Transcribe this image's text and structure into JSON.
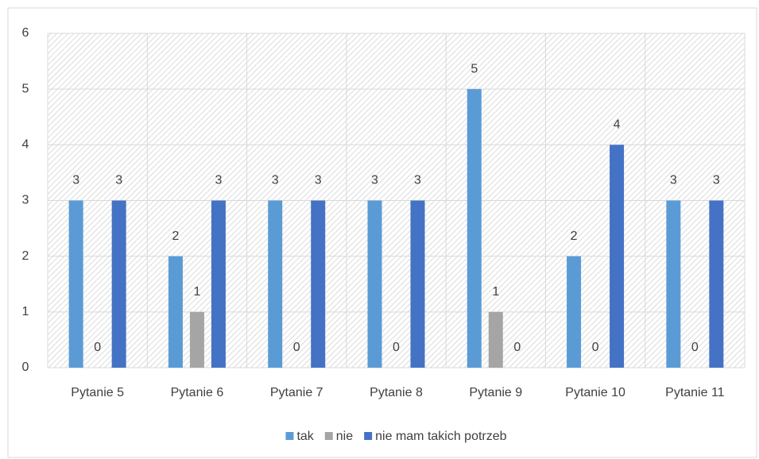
{
  "chart_data": {
    "type": "bar",
    "categories": [
      "Pytanie 5",
      "Pytanie 6",
      "Pytanie 7",
      "Pytanie 8",
      "Pytanie 9",
      "Pytanie 10",
      "Pytanie 11"
    ],
    "series": [
      {
        "name": "tak",
        "color": "#5b9bd5",
        "values": [
          3,
          2,
          3,
          3,
          5,
          2,
          3
        ]
      },
      {
        "name": "nie",
        "color": "#a5a5a5",
        "values": [
          0,
          1,
          0,
          0,
          1,
          0,
          0
        ]
      },
      {
        "name": "nie mam takich potrzeb",
        "color": "#4472c4",
        "values": [
          3,
          3,
          3,
          3,
          0,
          4,
          3
        ]
      }
    ],
    "ylim": [
      0,
      6
    ],
    "yticks": [
      0,
      1,
      2,
      3,
      4,
      5,
      6
    ],
    "grid": true,
    "legend": "bottom"
  }
}
